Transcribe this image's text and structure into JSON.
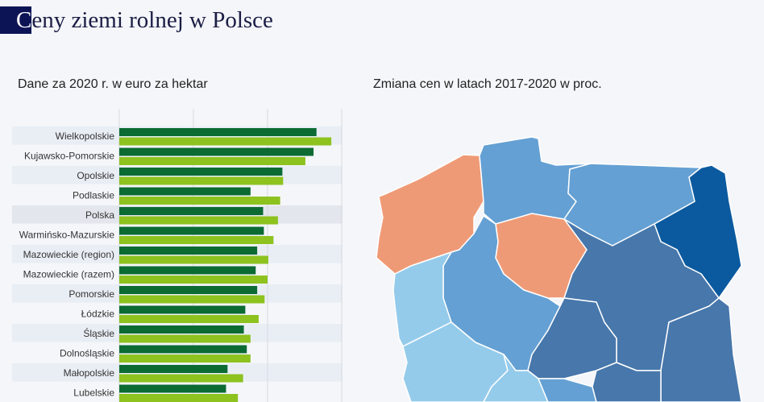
{
  "header": {
    "title_initial": "C",
    "title_rest": "eny ziemi rolnej w Polsce"
  },
  "left_subtitle": "Dane za 2020 r. w euro za hektar",
  "right_subtitle": "Zmiana cen w latach 2017-2020 w proc.",
  "chart_data": {
    "type": "bar",
    "orientation": "horizontal",
    "categories": [
      "Wielkopolskie",
      "Kujawsko-Pomorskie",
      "Opolskie",
      "Podlaskie",
      "Polska",
      "Warmińsko-Mazurskie",
      "Mazowieckie (region)",
      "Mazowieckie (razem)",
      "Pomorskie",
      "Łódzkie",
      "Śląskie",
      "Dolnośląskie",
      "Małopolskie",
      "Lubelskie"
    ],
    "series": [
      {
        "color": "#0b6b33",
        "values": [
          13300,
          13100,
          11000,
          8850,
          9700,
          9750,
          9300,
          9200,
          9300,
          8500,
          8400,
          8600,
          7300,
          7200
        ]
      },
      {
        "color": "#8dc21f",
        "values": [
          14300,
          12550,
          11050,
          10850,
          10700,
          10400,
          10050,
          10000,
          9800,
          9400,
          8850,
          8850,
          8350,
          8000
        ]
      }
    ],
    "xlim": [
      0,
      15000
    ],
    "grid_step": 5000,
    "grid": true,
    "highlight_category": "Polska",
    "xlabel": "",
    "ylabel": ""
  },
  "map": {
    "palette": {
      "orange": "#ef9a76",
      "light": "#94cbeb",
      "mid": "#64a0d3",
      "dark": "#4777ab",
      "darkest": "#0b5a9f"
    },
    "fills": [
      "orange",
      "mid",
      "mid",
      "darkest",
      "orange",
      "mid",
      "light",
      "dark",
      "dark",
      "dark",
      "light",
      "light",
      "mid",
      "dark"
    ]
  }
}
